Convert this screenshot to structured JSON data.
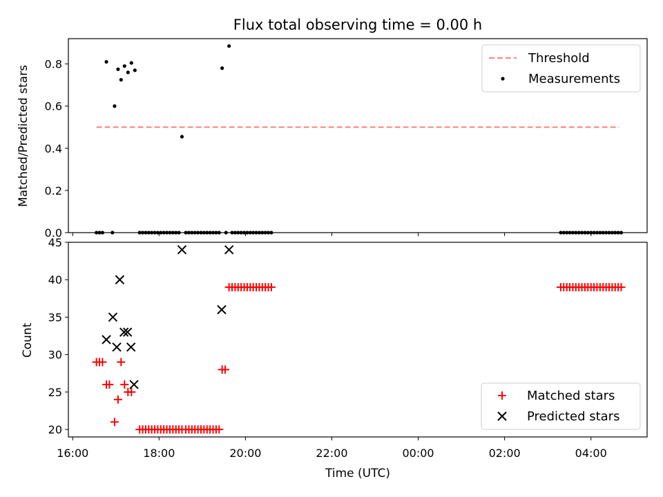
{
  "chart_data": [
    {
      "type": "scatter",
      "title": "Flux total observing time = 0.00 h",
      "xlabel": "",
      "ylabel": "Matched/Predicted stars",
      "ylim": [
        0,
        0.92
      ],
      "xlim_hours": [
        15.9,
        29.3
      ],
      "yticks": [
        0.0,
        0.2,
        0.4,
        0.6,
        0.8
      ],
      "ytick_labels": [
        "0.0",
        "0.2",
        "0.4",
        "0.6",
        "0.8"
      ],
      "legend_position": "top-right",
      "legend": [
        "Threshold",
        "Measurements"
      ],
      "threshold": {
        "name": "Threshold",
        "y": 0.5,
        "x_range": [
          16.55,
          28.65
        ],
        "color": "#ff8080"
      },
      "series": [
        {
          "name": "Measurements",
          "color": "#000000",
          "x": [
            16.55,
            16.62,
            16.69,
            16.78,
            16.92,
            16.97,
            17.05,
            17.12,
            17.2,
            17.28,
            17.36,
            17.44,
            17.55,
            17.62,
            17.69,
            17.76,
            17.83,
            17.9,
            17.97,
            18.04,
            18.11,
            18.18,
            18.25,
            18.32,
            18.39,
            18.46,
            18.53,
            18.62,
            18.69,
            18.76,
            18.83,
            18.9,
            18.97,
            19.04,
            19.11,
            19.18,
            19.25,
            19.32,
            19.39,
            19.46,
            19.55,
            19.62,
            19.69,
            19.76,
            19.83,
            19.9,
            19.97,
            20.04,
            20.11,
            20.18,
            20.25,
            20.32,
            20.39,
            20.46,
            20.53,
            20.6,
            27.3,
            27.37,
            27.44,
            27.51,
            27.58,
            27.65,
            27.72,
            27.79,
            27.86,
            27.93,
            28.0,
            28.07,
            28.14,
            28.21,
            28.28,
            28.35,
            28.42,
            28.49,
            28.56,
            28.63,
            28.7
          ],
          "y": [
            0,
            0,
            0,
            0.81,
            0,
            0.6,
            0.775,
            0.725,
            0.79,
            0.76,
            0.805,
            0.77,
            0,
            0,
            0,
            0,
            0,
            0,
            0,
            0,
            0,
            0,
            0,
            0,
            0,
            0,
            0.455,
            0,
            0,
            0,
            0,
            0,
            0,
            0,
            0,
            0,
            0,
            0,
            0,
            0.78,
            0,
            0.885,
            0,
            0,
            0,
            0,
            0,
            0,
            0,
            0,
            0,
            0,
            0,
            0,
            0,
            0,
            0,
            0,
            0,
            0,
            0,
            0,
            0,
            0,
            0,
            0,
            0,
            0,
            0,
            0,
            0,
            0,
            0,
            0,
            0,
            0,
            0
          ]
        }
      ]
    },
    {
      "type": "scatter",
      "title": "",
      "xlabel": "Time (UTC)",
      "ylabel": "Count",
      "ylim": [
        19,
        45
      ],
      "xlim_hours": [
        15.9,
        29.3
      ],
      "yticks": [
        20,
        25,
        30,
        35,
        40,
        45
      ],
      "ytick_labels": [
        "20",
        "25",
        "30",
        "35",
        "40",
        "45"
      ],
      "xticks_hours": [
        16,
        18,
        20,
        22,
        24,
        26,
        28
      ],
      "xtick_labels": [
        "16:00",
        "18:00",
        "20:00",
        "22:00",
        "00:00",
        "02:00",
        "04:00"
      ],
      "legend_position": "bottom-right",
      "legend": [
        "Matched stars",
        "Predicted stars"
      ],
      "series": [
        {
          "name": "Matched stars",
          "marker": "+",
          "color": "#ff0000",
          "x": [
            16.55,
            16.62,
            16.69,
            16.78,
            16.85,
            16.97,
            17.05,
            17.12,
            17.2,
            17.28,
            17.36,
            17.55,
            17.62,
            17.69,
            17.76,
            17.83,
            17.9,
            17.97,
            18.04,
            18.11,
            18.18,
            18.25,
            18.32,
            18.39,
            18.46,
            18.53,
            18.62,
            18.69,
            18.76,
            18.83,
            18.9,
            18.97,
            19.04,
            19.11,
            19.18,
            19.25,
            19.32,
            19.39,
            19.46,
            19.53,
            19.62,
            19.69,
            19.76,
            19.83,
            19.9,
            19.97,
            20.04,
            20.11,
            20.18,
            20.25,
            20.32,
            20.39,
            20.46,
            20.53,
            20.6,
            27.3,
            27.37,
            27.44,
            27.51,
            27.58,
            27.65,
            27.72,
            27.79,
            27.86,
            27.93,
            28.0,
            28.07,
            28.14,
            28.21,
            28.28,
            28.35,
            28.42,
            28.49,
            28.56,
            28.63,
            28.7
          ],
          "y": [
            29,
            29,
            29,
            26,
            26,
            21,
            24,
            29,
            26,
            25,
            25,
            20,
            20,
            20,
            20,
            20,
            20,
            20,
            20,
            20,
            20,
            20,
            20,
            20,
            20,
            20,
            20,
            20,
            20,
            20,
            20,
            20,
            20,
            20,
            20,
            20,
            20,
            20,
            28,
            28,
            39,
            39,
            39,
            39,
            39,
            39,
            39,
            39,
            39,
            39,
            39,
            39,
            39,
            39,
            39,
            39,
            39,
            39,
            39,
            39,
            39,
            39,
            39,
            39,
            39,
            39,
            39,
            39,
            39,
            39,
            39,
            39,
            39,
            39,
            39,
            39
          ]
        },
        {
          "name": "Predicted stars",
          "marker": "x",
          "color": "#000000",
          "x": [
            16.78,
            16.93,
            17.02,
            17.09,
            17.19,
            17.27,
            17.35,
            17.42,
            18.53,
            19.45,
            19.62
          ],
          "y": [
            32,
            35,
            31,
            40,
            33,
            33,
            31,
            26,
            44,
            36,
            44
          ]
        }
      ]
    }
  ]
}
